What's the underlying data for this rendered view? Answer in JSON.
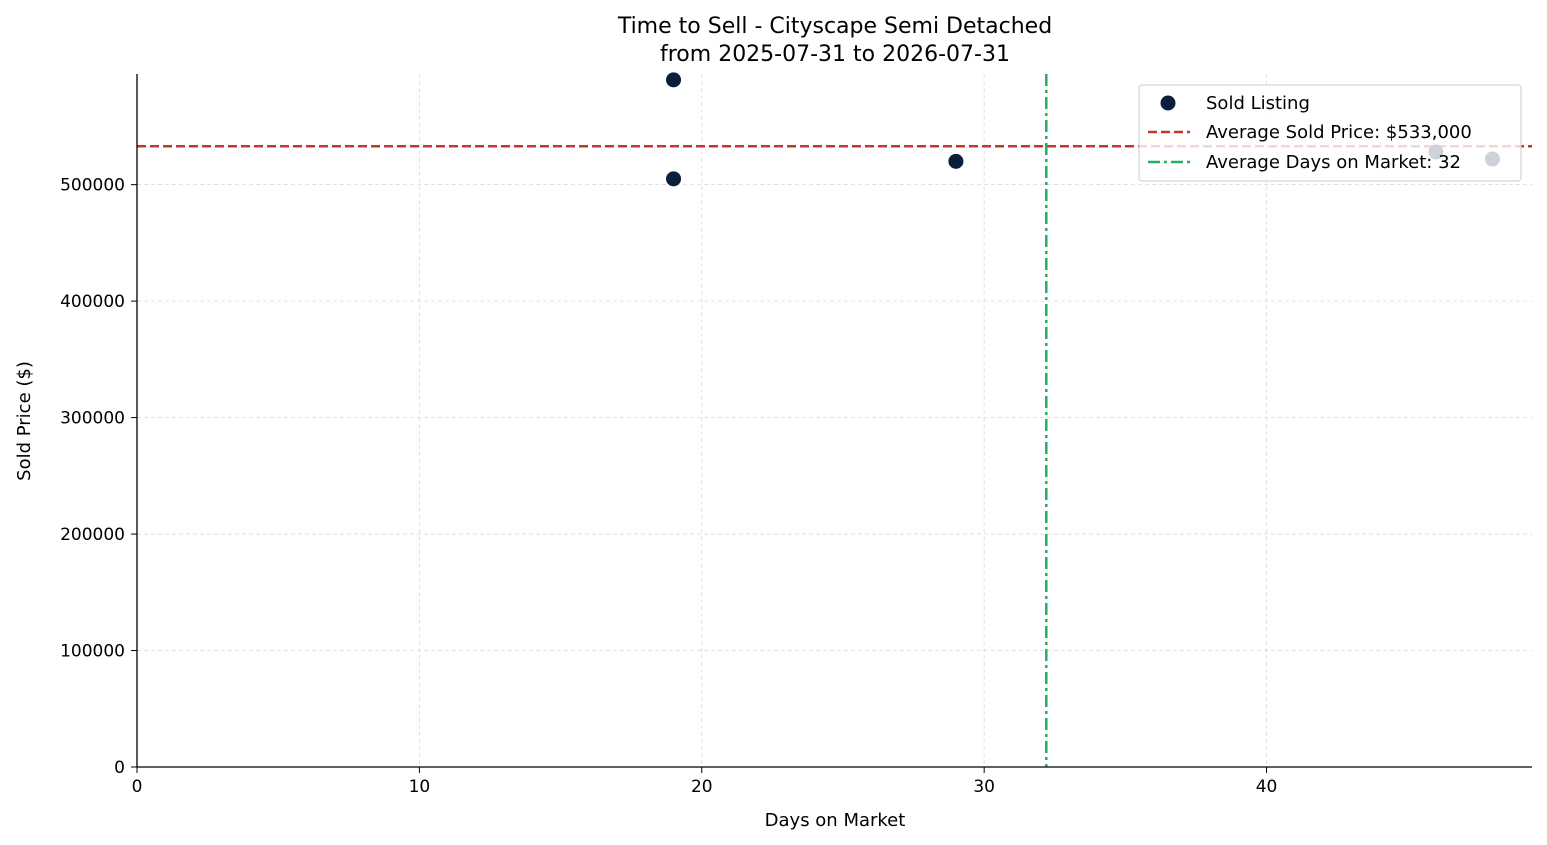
{
  "chart_data": {
    "type": "scatter",
    "title_line1": "Time to Sell - Cityscape Semi Detached",
    "title_line2": "from 2025-07-31 to 2026-07-31",
    "xlabel": "Days on Market",
    "ylabel": "Sold Price ($)",
    "xlim": [
      0,
      49.4
    ],
    "ylim": [
      0,
      595000
    ],
    "xticks": [
      0,
      10,
      20,
      30,
      40
    ],
    "yticks": [
      0,
      100000,
      200000,
      300000,
      400000,
      500000
    ],
    "grid": true,
    "legend_position": "top-right",
    "series": [
      {
        "name": "Sold Listing",
        "color": "#0a1f3c",
        "points": [
          {
            "x": 19,
            "y": 590000
          },
          {
            "x": 19,
            "y": 505000
          },
          {
            "x": 29,
            "y": 520000
          },
          {
            "x": 46,
            "y": 528000
          },
          {
            "x": 48,
            "y": 522000
          }
        ]
      }
    ],
    "reference_lines": [
      {
        "name": "Average Sold Price: $533,000",
        "orientation": "horizontal",
        "value": 533000,
        "color": "#c0392b",
        "style": "dashed"
      },
      {
        "name": "Average Days on Market: 32",
        "orientation": "vertical",
        "value": 32.2,
        "color": "#27ae60",
        "style": "dashdot"
      }
    ]
  }
}
